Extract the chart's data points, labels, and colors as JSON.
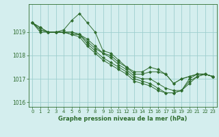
{
  "line1": [
    1019.4,
    1019.2,
    1019.0,
    1019.0,
    1019.1,
    1019.5,
    1019.8,
    1019.4,
    1019.0,
    1018.2,
    1018.1,
    1017.8,
    1017.5,
    1017.3,
    1017.3,
    1017.5,
    1017.4,
    1017.2,
    1016.8,
    1017.0,
    1017.1,
    1017.2,
    1017.2,
    1017.1
  ],
  "line2": [
    1019.4,
    1019.2,
    1019.0,
    1019.0,
    1019.0,
    1019.0,
    1018.9,
    1018.6,
    1018.3,
    1018.1,
    1018.0,
    1017.7,
    1017.5,
    1017.2,
    1017.2,
    1017.3,
    1017.3,
    1017.2,
    1016.8,
    1017.0,
    1017.1,
    1017.2,
    1017.2,
    1017.1
  ],
  "line3": [
    1019.4,
    1019.1,
    1019.0,
    1019.0,
    1019.0,
    1019.0,
    1018.9,
    1018.7,
    1018.4,
    1018.1,
    1017.9,
    1017.6,
    1017.4,
    1017.1,
    1017.0,
    1017.0,
    1016.8,
    1016.6,
    1016.5,
    1016.5,
    1017.0,
    1017.2,
    1017.2,
    1017.1
  ],
  "line4": [
    1019.4,
    1019.1,
    1019.0,
    1019.0,
    1019.0,
    1018.9,
    1018.9,
    1018.5,
    1018.2,
    1017.9,
    1017.7,
    1017.5,
    1017.3,
    1017.0,
    1016.9,
    1016.8,
    1016.6,
    1016.4,
    1016.4,
    1016.5,
    1016.9,
    1017.1,
    1017.2,
    1017.1
  ],
  "line5": [
    1019.4,
    1019.0,
    1019.0,
    1019.0,
    1019.0,
    1018.9,
    1018.8,
    1018.4,
    1018.1,
    1017.8,
    1017.6,
    1017.4,
    1017.2,
    1016.9,
    1016.8,
    1016.7,
    1016.5,
    1016.4,
    1016.4,
    1016.5,
    1016.8,
    1017.1,
    1017.2,
    1017.1
  ],
  "line_color": "#2d6b2d",
  "marker": "D",
  "marker_size": 2.2,
  "bg_color": "#d4eeee",
  "grid_color": "#9ecece",
  "xlabel": "Graphe pression niveau de la mer (hPa)",
  "ylim": [
    1015.8,
    1020.2
  ],
  "yticks": [
    1016,
    1017,
    1018,
    1019
  ],
  "xticks": [
    0,
    1,
    2,
    3,
    4,
    5,
    6,
    7,
    8,
    9,
    10,
    11,
    12,
    13,
    14,
    15,
    16,
    17,
    18,
    19,
    20,
    21,
    22,
    23
  ]
}
